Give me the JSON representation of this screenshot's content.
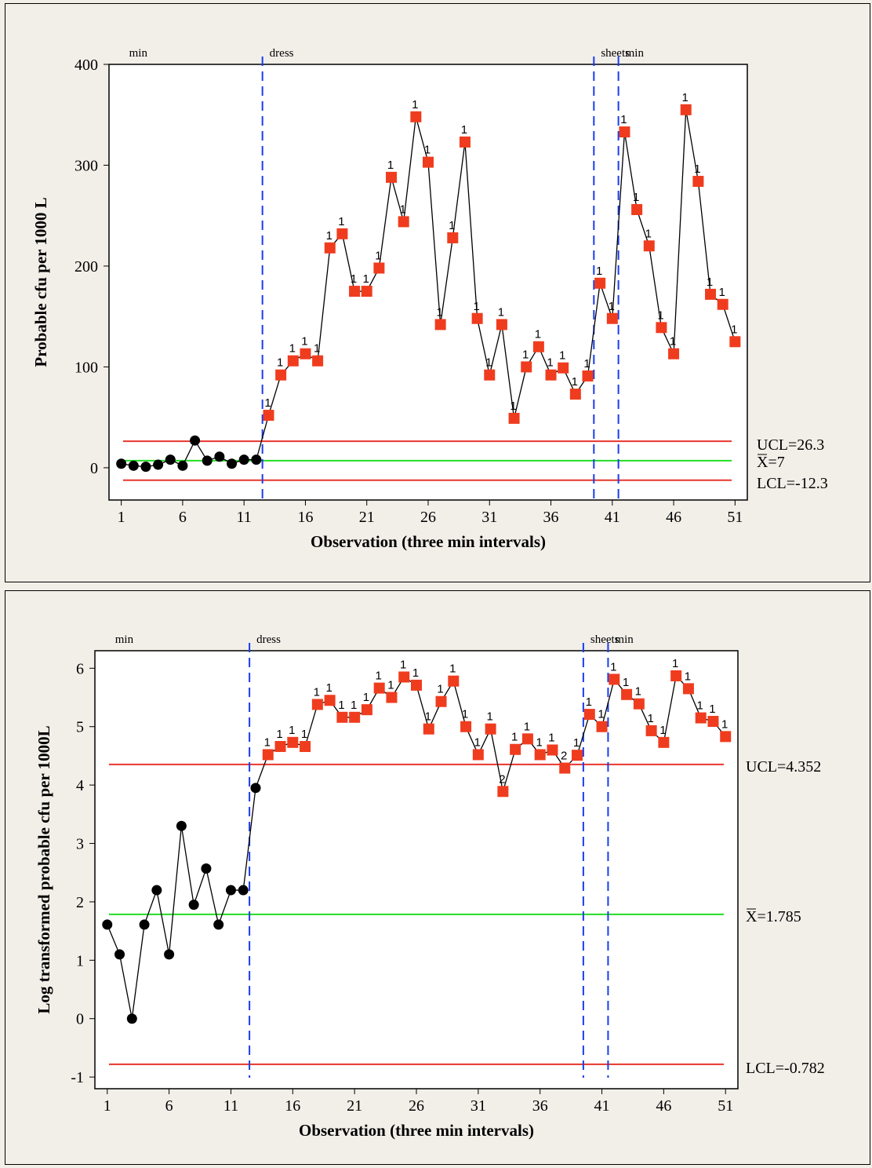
{
  "chart_data": [
    {
      "type": "line",
      "title": "",
      "xlabel": "Observation (three min intervals)",
      "ylabel": "Probable cfu per 1000 L",
      "xlim": [
        0,
        52
      ],
      "ylim": [
        -32,
        400
      ],
      "xticks": [
        1,
        6,
        11,
        16,
        21,
        26,
        31,
        36,
        41,
        46,
        51
      ],
      "yticks": [
        0,
        100,
        200,
        300,
        400
      ],
      "grid": false,
      "series": [
        {
          "x": [
            1,
            2,
            3,
            4,
            5,
            6,
            7,
            8,
            9,
            10,
            11,
            12,
            13,
            14,
            15,
            16,
            17,
            18,
            19,
            20,
            21,
            22,
            23,
            24,
            25,
            26,
            27,
            28,
            29,
            30,
            31,
            32,
            33,
            34,
            35,
            36,
            37,
            38,
            39,
            40,
            41,
            42,
            43,
            44,
            45,
            46,
            47,
            48,
            49,
            50,
            51
          ],
          "values": [
            4,
            2,
            1,
            3,
            8,
            2,
            27,
            7,
            11,
            4,
            8,
            8,
            52,
            92,
            106,
            113,
            106,
            218,
            232,
            175,
            175,
            198,
            288,
            244,
            348,
            303,
            142,
            228,
            323,
            148,
            92,
            142,
            49,
            100,
            120,
            92,
            99,
            73,
            91,
            183,
            148,
            333,
            256,
            220,
            139,
            113,
            355,
            284,
            172,
            162,
            125
          ],
          "flags": [
            "",
            "",
            "",
            "",
            "",
            "",
            "",
            "",
            "",
            "",
            "",
            "",
            "1",
            "1",
            "1",
            "1",
            "1",
            "1",
            "1",
            "1",
            "1",
            "1",
            "1",
            "1",
            "1",
            "1",
            "1",
            "1",
            "1",
            "1",
            "1",
            "1",
            "1",
            "1",
            "1",
            "1",
            "1",
            "1",
            "1",
            "1",
            "1",
            "1",
            "1",
            "1",
            "1",
            "1",
            "1",
            "1",
            "1",
            "1",
            "1"
          ]
        }
      ],
      "control_lines": [
        {
          "label": "UCL=26.3",
          "value": 26.3,
          "color": "#e8352c"
        },
        {
          "label": "X=7",
          "value": 7,
          "color": "#22dd22"
        },
        {
          "label": "LCL=-12.3",
          "value": -12.3,
          "color": "#e8352c"
        }
      ],
      "phase_lines": [
        {
          "x": 12.5,
          "label": "dress"
        },
        {
          "x": 39.5,
          "label": "sheets"
        },
        {
          "x": 41.5,
          "label": "min"
        }
      ],
      "phase_first_label": "min"
    },
    {
      "type": "line",
      "title": "",
      "xlabel": "Observation (three min intervals)",
      "ylabel": "Log transformed probable cfu per 1000L",
      "xlim": [
        0,
        52
      ],
      "ylim": [
        -1.2,
        6.3
      ],
      "xticks": [
        1,
        6,
        11,
        16,
        21,
        26,
        31,
        36,
        41,
        46,
        51
      ],
      "yticks": [
        -1,
        0,
        1,
        2,
        3,
        4,
        5,
        6
      ],
      "grid": false,
      "series": [
        {
          "x": [
            1,
            2,
            3,
            4,
            5,
            6,
            7,
            8,
            9,
            10,
            11,
            12,
            13,
            14,
            15,
            16,
            17,
            18,
            19,
            20,
            21,
            22,
            23,
            24,
            25,
            26,
            27,
            28,
            29,
            30,
            31,
            32,
            33,
            34,
            35,
            36,
            37,
            38,
            39,
            40,
            41,
            42,
            43,
            44,
            45,
            46,
            47,
            48,
            49,
            50,
            51
          ],
          "values": [
            1.61,
            1.1,
            0.0,
            1.61,
            2.2,
            1.1,
            3.3,
            1.95,
            2.57,
            1.61,
            2.2,
            2.2,
            3.95,
            4.52,
            4.66,
            4.73,
            4.66,
            5.38,
            5.45,
            5.16,
            5.16,
            5.29,
            5.66,
            5.5,
            5.85,
            5.71,
            4.96,
            5.43,
            5.78,
            5.0,
            4.52,
            4.96,
            3.89,
            4.61,
            4.79,
            4.52,
            4.6,
            4.29,
            4.51,
            5.21,
            5.0,
            5.81,
            5.55,
            5.39,
            4.93,
            4.73,
            5.87,
            5.65,
            5.15,
            5.09,
            4.83
          ],
          "flags": [
            "",
            "",
            "",
            "",
            "",
            "",
            "",
            "",
            "",
            "",
            "",
            "",
            "",
            "1",
            "1",
            "1",
            "1",
            "1",
            "1",
            "1",
            "1",
            "1",
            "1",
            "1",
            "1",
            "1",
            "1",
            "1",
            "1",
            "1",
            "1",
            "1",
            "2",
            "1",
            "1",
            "1",
            "1",
            "2",
            "1",
            "1",
            "1",
            "1",
            "1",
            "1",
            "1",
            "1",
            "1",
            "1",
            "1",
            "1",
            "1"
          ]
        }
      ],
      "control_lines": [
        {
          "label": "UCL=4.352",
          "value": 4.352,
          "color": "#e8352c"
        },
        {
          "label": "X=1.785",
          "value": 1.785,
          "color": "#22dd22"
        },
        {
          "label": "LCL=-0.782",
          "value": -0.782,
          "color": "#e8352c"
        }
      ],
      "phase_lines": [
        {
          "x": 12.5,
          "label": "dress"
        },
        {
          "x": 39.5,
          "label": "sheets"
        },
        {
          "x": 41.5,
          "label": "min"
        }
      ],
      "phase_first_label": "min"
    }
  ]
}
